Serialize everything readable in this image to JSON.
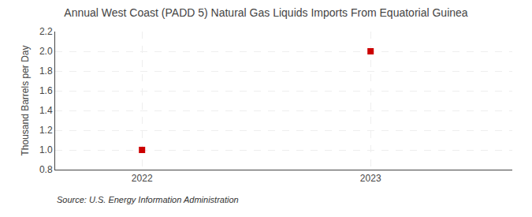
{
  "chart_data": {
    "type": "scatter",
    "title": "Annual West Coast (PADD 5) Natural Gas Liquids Imports From Equatorial Guinea",
    "y_label": "Thousand Barrels per Day",
    "annotations": [
      "Source: U.S. Energy Information Administration"
    ],
    "x": [
      2022,
      2023
    ],
    "values": [
      1.0,
      2.0
    ],
    "color": "#cc0000",
    "marker": "square",
    "xlim": [
      2021.62,
      2023.62
    ],
    "xticks": [
      2022,
      2023
    ],
    "ylim": [
      0.8,
      2.2
    ],
    "yticks": [
      0.8,
      {
        "value": 1.0,
        "label": "1.0"
      },
      1.2,
      1.4,
      1.6,
      1.8,
      {
        "value": 2.0,
        "label": "2.0"
      },
      2.2
    ],
    "grid": true
  }
}
